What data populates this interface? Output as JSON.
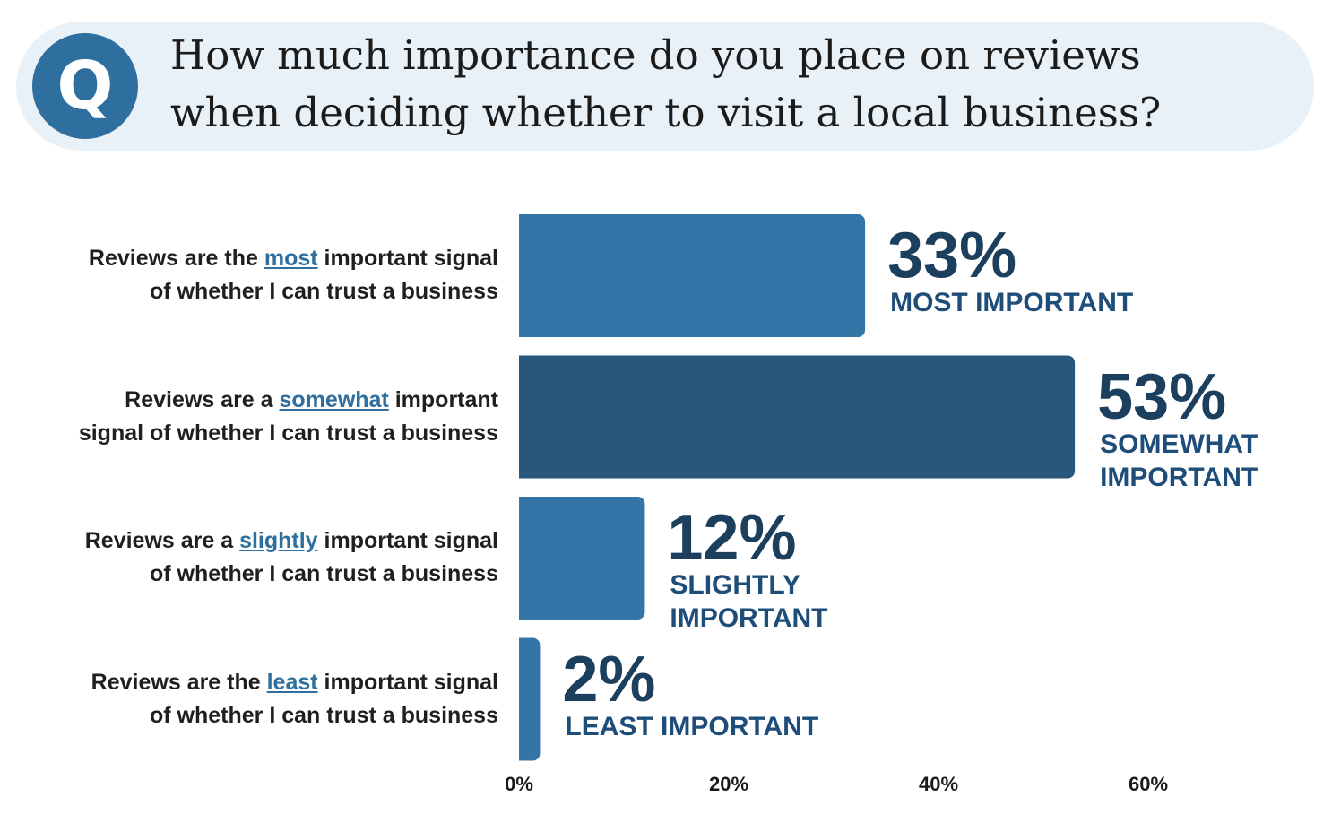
{
  "question": {
    "icon_letter": "Q",
    "line1": "How much importance do you place on reviews",
    "line2": "when deciding whether to visit a local business?"
  },
  "colors": {
    "bar": "#3375a6",
    "bar_highlight": "#27577c",
    "banner": "#e8f1f8",
    "value_text": "#1d3f5e",
    "category_text": "#1d4d78"
  },
  "chart_data": {
    "type": "bar",
    "orientation": "horizontal",
    "xlim": [
      0,
      60
    ],
    "ticks": [
      "0%",
      "20%",
      "40%",
      "60%"
    ],
    "tick_values": [
      0,
      20,
      40,
      60
    ],
    "grid": false,
    "rows": [
      {
        "label_pre": "Reviews are the ",
        "label_emph": "most",
        "label_post": " important signal",
        "label_line2": "of whether I can trust a business",
        "value": 33,
        "value_label": "33%",
        "category": [
          "MOST IMPORTANT"
        ],
        "highlight": false
      },
      {
        "label_pre": "Reviews are a ",
        "label_emph": "somewhat",
        "label_post": " important",
        "label_line2": "signal of whether I can trust a business",
        "value": 53,
        "value_label": "53%",
        "category": [
          "SOMEWHAT",
          "IMPORTANT"
        ],
        "highlight": true
      },
      {
        "label_pre": "Reviews are a ",
        "label_emph": "slightly",
        "label_post": " important signal",
        "label_line2": "of whether I can trust a business",
        "value": 12,
        "value_label": "12%",
        "category": [
          "SLIGHTLY IMPORTANT"
        ],
        "highlight": false
      },
      {
        "label_pre": "Reviews are the ",
        "label_emph": "least",
        "label_post": " important signal",
        "label_line2": "of whether I can trust a business",
        "value": 2,
        "value_label": "2%",
        "category": [
          "LEAST IMPORTANT"
        ],
        "highlight": false
      }
    ]
  }
}
